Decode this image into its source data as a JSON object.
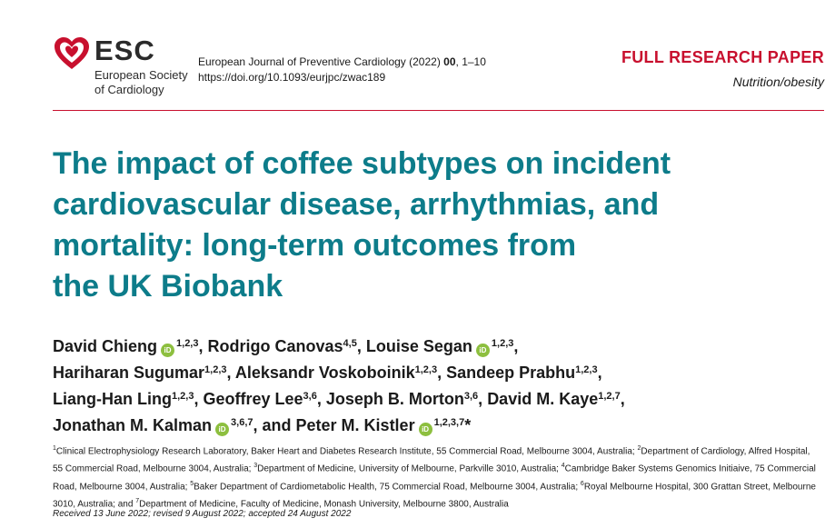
{
  "header": {
    "logo": {
      "abbr": "ESC",
      "line1": "European Society",
      "line2": "of Cardiology",
      "icon": "esc-heart-icon"
    },
    "journal": {
      "name_prefix": "European Journal of Preventive Cardiology (2022) ",
      "volume": "00",
      "pages": ", 1–10",
      "doi": "https://doi.org/10.1093/eurjpc/zwac189"
    },
    "paper_type": "FULL RESEARCH PAPER",
    "category": "Nutrition/obesity"
  },
  "title_lines": [
    "The impact of coffee subtypes on incident",
    "cardiovascular disease, arrhythmias, and",
    "mortality: long-term outcomes from",
    "the UK Biobank"
  ],
  "authors": [
    {
      "name": "David Chieng",
      "sup": "1,2,3",
      "orcid": true,
      "sep": ","
    },
    {
      "name": "Rodrigo Canovas",
      "sup": "4,5",
      "orcid": false,
      "sep": ","
    },
    {
      "name": "Louise Segan",
      "sup": "1,2,3",
      "orcid": true,
      "sep": ","
    },
    {
      "name": "Hariharan Sugumar",
      "sup": "1,2,3",
      "orcid": false,
      "sep": ","
    },
    {
      "name": "Aleksandr Voskoboinik",
      "sup": "1,2,3",
      "orcid": false,
      "sep": ","
    },
    {
      "name": "Sandeep Prabhu",
      "sup": "1,2,3",
      "orcid": false,
      "sep": ","
    },
    {
      "name": "Liang-Han Ling",
      "sup": "1,2,3",
      "orcid": false,
      "sep": ","
    },
    {
      "name": "Geoffrey Lee",
      "sup": "3,6",
      "orcid": false,
      "sep": ","
    },
    {
      "name": "Joseph B. Morton",
      "sup": "3,6",
      "orcid": false,
      "sep": ","
    },
    {
      "name": "David M. Kaye",
      "sup": "1,2,7",
      "orcid": false,
      "sep": ","
    },
    {
      "name": "Jonathan M. Kalman",
      "sup": "3,6,7",
      "orcid": true,
      "sep": ", and"
    },
    {
      "name": "Peter M. Kistler",
      "sup": "1,2,3,7",
      "orcid": true,
      "sep": "*"
    }
  ],
  "orcid_label": "iD",
  "affiliations": [
    {
      "num": "1",
      "text": "Clinical Electrophysiology Research Laboratory, Baker Heart and Diabetes Research Institute, 55 Commercial Road, Melbourne 3004, Australia; "
    },
    {
      "num": "2",
      "text": "Department of Cardiology, Alfred Hospital, 55 Commercial Road, Melbourne 3004, Australia; "
    },
    {
      "num": "3",
      "text": "Department of Medicine, University of Melbourne, Parkville 3010, Australia; "
    },
    {
      "num": "4",
      "text": "Cambridge Baker Systems Genomics Initiaive, 75 Commercial Road, Melbourne 3004, Australia; "
    },
    {
      "num": "5",
      "text": "Baker Department of Cardiometabolic Health, 75 Commercial Road, Melbourne 3004, Australia; "
    },
    {
      "num": "6",
      "text": "Royal Melbourne Hospital, 300 Grattan Street, Melbourne 3010, Australia; and "
    },
    {
      "num": "7",
      "text": "Department of Medicine, Faculty of Medicine, Monash University, Melbourne 3800, Australia"
    }
  ],
  "dates": "Received 13 June 2022; revised 9 August 2022; accepted 24 August 2022",
  "colors": {
    "accent_red": "#c8102e",
    "title_teal": "#0d7c8a",
    "orcid_green": "#8dbf3f"
  }
}
